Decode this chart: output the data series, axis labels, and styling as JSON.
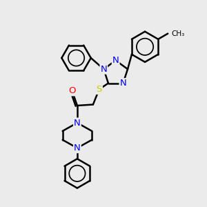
{
  "bg_color": "#ebebeb",
  "bond_color": "#000000",
  "atom_colors": {
    "N": "#0000ee",
    "S": "#cccc00",
    "O": "#ff0000",
    "C": "#000000"
  },
  "line_width": 1.8,
  "font_size": 9.5
}
